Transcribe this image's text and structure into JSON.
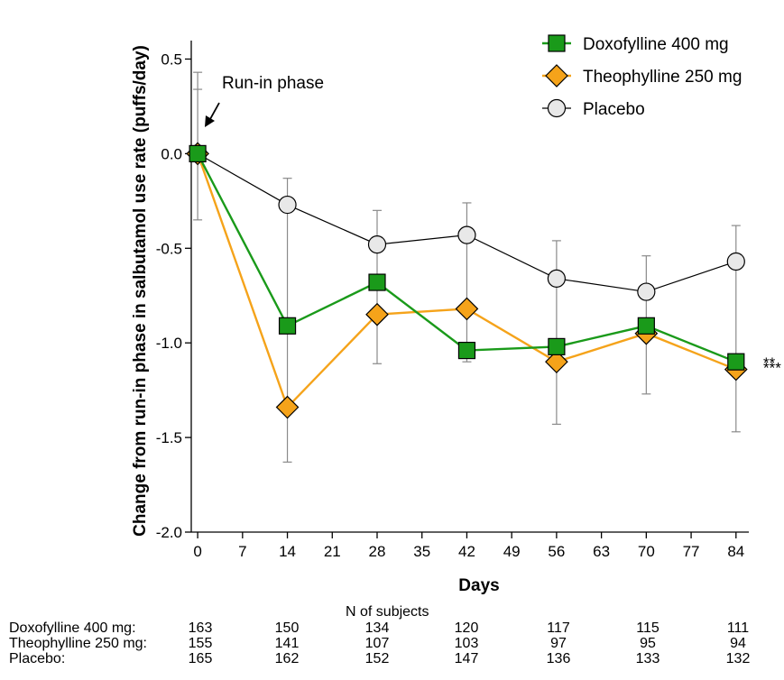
{
  "chart_data": {
    "type": "line",
    "xlabel": "Days",
    "ylabel": "Change from run-in phase in salbutamol use rate (puffs/day)",
    "x_ticks": [
      0,
      7,
      14,
      21,
      28,
      35,
      42,
      49,
      56,
      63,
      70,
      77,
      84
    ],
    "y_ticks": [
      0.5,
      0.0,
      -0.5,
      -1.0,
      -1.5,
      -2.0
    ],
    "y_tick_labels": [
      "0.5",
      "0.0",
      "-0.5",
      "-1.0",
      "-1.5",
      "-2.0"
    ],
    "xlim": [
      -1,
      86
    ],
    "ylim": [
      -2.0,
      0.55
    ],
    "grid": false,
    "legend_position": "top-right",
    "annotation": "Run-in phase",
    "significance": [
      "**",
      "***"
    ],
    "x": [
      0,
      14,
      28,
      42,
      56,
      70,
      84
    ],
    "series": [
      {
        "name": "Doxofylline 400 mg",
        "marker": "square",
        "color": "#1a9a1a",
        "y": [
          0.0,
          -0.91,
          -0.68,
          -1.04,
          -1.02,
          -0.91,
          -1.1
        ]
      },
      {
        "name": "Theophylline 250 mg",
        "marker": "diamond",
        "color": "#f5a31a",
        "y": [
          0.0,
          -1.34,
          -0.85,
          -0.82,
          -1.1,
          -0.95,
          -1.14
        ]
      },
      {
        "name": "Placebo",
        "marker": "circle",
        "color": "#e8e8e8",
        "y": [
          0.0,
          -0.27,
          -0.48,
          -0.43,
          -0.66,
          -0.73,
          -0.57
        ]
      }
    ],
    "error_bars": [
      {
        "x": 0,
        "low": -0.35,
        "high": 0.43
      },
      {
        "x": 14,
        "low": -1.63,
        "high": -0.13
      },
      {
        "x": 28,
        "low": -1.11,
        "high": -0.3
      },
      {
        "x": 42,
        "low": -1.1,
        "high": -0.26
      },
      {
        "x": 56,
        "low": -1.43,
        "high": -0.46
      },
      {
        "x": 70,
        "low": -1.27,
        "high": -0.54
      },
      {
        "x": 84,
        "low": -1.47,
        "high": -0.38
      }
    ]
  },
  "subjects_table": {
    "title": "N of subjects",
    "rows": [
      {
        "label": "Doxofylline 400 mg:",
        "values": [
          "163",
          "150",
          "134",
          "120",
          "117",
          "115",
          "111"
        ]
      },
      {
        "label": "Theophylline 250 mg:",
        "values": [
          "155",
          "141",
          "107",
          "103",
          "97",
          "95",
          "94"
        ]
      },
      {
        "label": "Placebo:",
        "values": [
          "165",
          "162",
          "152",
          "147",
          "136",
          "133",
          "132"
        ]
      }
    ]
  }
}
